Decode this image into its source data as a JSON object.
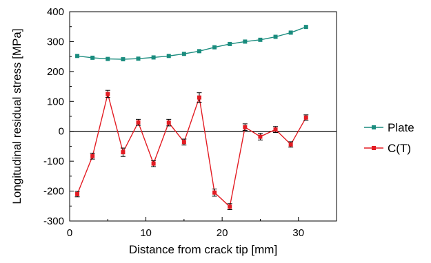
{
  "chart_data": {
    "type": "line",
    "title": "",
    "xlabel": "Distance from crack tip [mm]",
    "ylabel": "Longitudinal residual stress [MPa]",
    "xlim": [
      0,
      35
    ],
    "ylim": [
      -300,
      400
    ],
    "xticks": [
      0,
      10,
      20,
      30
    ],
    "yticks": [
      -300,
      -200,
      -100,
      0,
      100,
      200,
      300,
      400
    ],
    "grid": false,
    "zero_line": true,
    "legend_position": "right",
    "series": [
      {
        "name": "Plate",
        "color": "#1a8c7e",
        "marker": "square",
        "x": [
          1,
          3,
          5,
          7,
          9,
          11,
          13,
          15,
          17,
          19,
          21,
          23,
          25,
          27,
          29,
          31
        ],
        "y": [
          252,
          246,
          242,
          241,
          243,
          247,
          252,
          259,
          268,
          281,
          292,
          300,
          306,
          316,
          330,
          349
        ],
        "err": []
      },
      {
        "name": "C(T)",
        "color": "#e31c23",
        "marker": "square",
        "x": [
          1,
          3,
          5,
          7,
          9,
          11,
          13,
          15,
          17,
          19,
          21,
          23,
          25,
          27,
          29,
          31
        ],
        "y": [
          -210,
          -83,
          125,
          -70,
          30,
          -108,
          29,
          -36,
          113,
          -205,
          -252,
          14,
          -18,
          6,
          -44,
          46
        ],
        "err": [
          9,
          10,
          12,
          14,
          10,
          10,
          11,
          10,
          16,
          12,
          10,
          11,
          11,
          10,
          9,
          9
        ]
      }
    ]
  }
}
